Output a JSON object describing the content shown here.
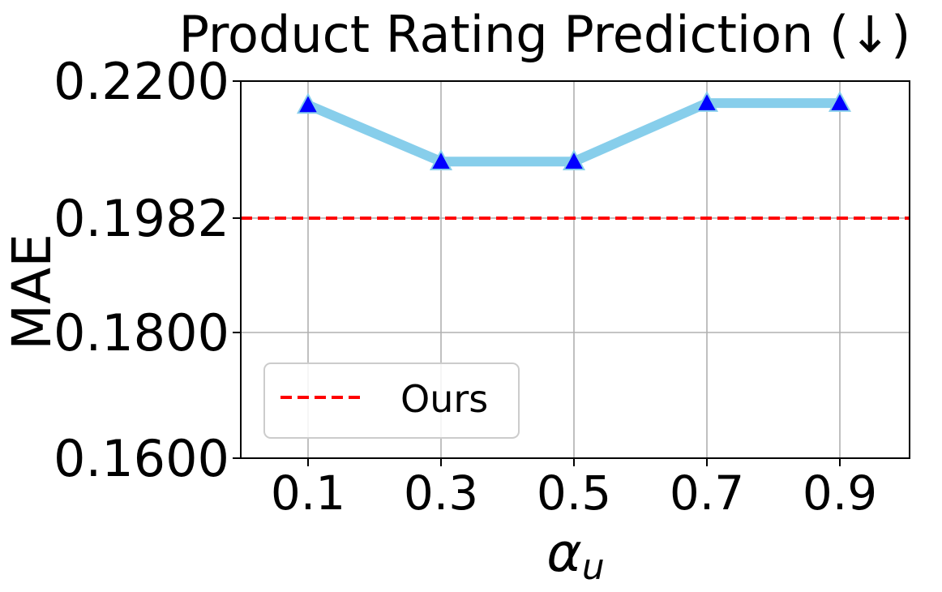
{
  "chart_data": {
    "type": "line",
    "title": "Product Rating Prediction (↓)",
    "xlabel": "α",
    "xlabel_sub": "u",
    "ylabel": "MAE",
    "categories": [
      "0.1",
      "0.3",
      "0.5",
      "0.7",
      "0.9"
    ],
    "yticks": [
      0.16,
      0.18,
      0.1982,
      0.22
    ],
    "ytick_labels": [
      "0.1600",
      "0.1800",
      "0.1982",
      "0.2200"
    ],
    "ylim": [
      0.16,
      0.22
    ],
    "grid": true,
    "series": [
      {
        "values": [
          0.2162,
          0.2072,
          0.2072,
          0.2165,
          0.2165
        ],
        "color": "#87ceeb",
        "marker": "triangle",
        "marker_color": "#0000ff"
      }
    ],
    "reference_lines": [
      {
        "name": "Ours",
        "y": 0.1982,
        "color": "#ff0000",
        "style": "dashed"
      }
    ],
    "legend": {
      "position": "lower-left",
      "entries": [
        "Ours"
      ]
    }
  }
}
